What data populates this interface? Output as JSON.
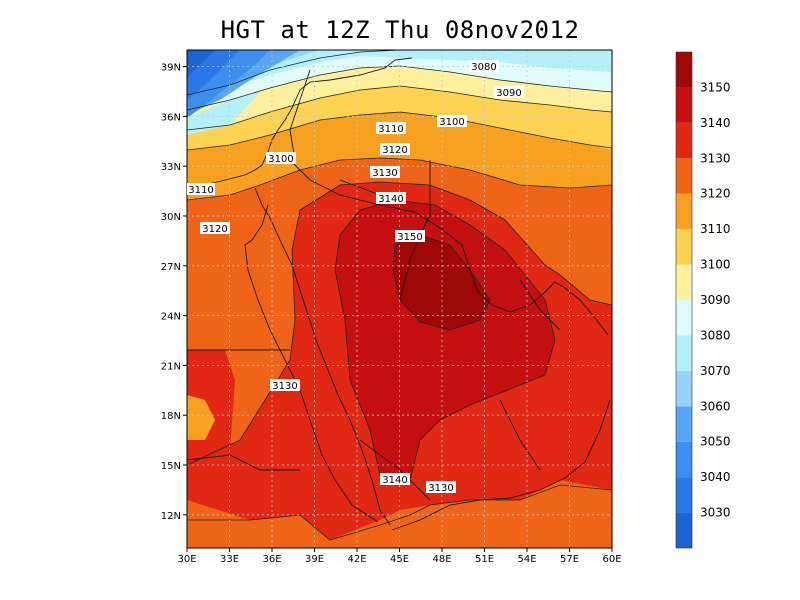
{
  "title": "HGT at 12Z Thu 08nov2012",
  "map": {
    "lon_range": [
      30,
      60
    ],
    "lat_range": [
      10,
      40
    ],
    "x_ticks": [
      "30E",
      "33E",
      "36E",
      "39E",
      "42E",
      "45E",
      "48E",
      "51E",
      "54E",
      "57E",
      "60E"
    ],
    "y_ticks": [
      "12N",
      "15N",
      "18N",
      "21N",
      "24N",
      "27N",
      "30N",
      "33N",
      "36N",
      "39N"
    ],
    "grid": "dotted"
  },
  "contour_labels": [
    "3080",
    "3090",
    "3100",
    "3110",
    "3120",
    "3130",
    "3140",
    "3150",
    "3100",
    "3110",
    "3120",
    "3130",
    "3140",
    "3130"
  ],
  "colorbar": {
    "levels": [
      "3030",
      "3040",
      "3050",
      "3060",
      "3070",
      "3080",
      "3090",
      "3100",
      "3110",
      "3120",
      "3130",
      "3140",
      "3150"
    ],
    "colors": [
      "#1e64d2",
      "#2a78e8",
      "#3c8ff0",
      "#5aa5f5",
      "#96d2fa",
      "#b4f0fa",
      "#e1fafa",
      "#fff0a0",
      "#fcd250",
      "#f8a020",
      "#f06418",
      "#e02814",
      "#c41010",
      "#a00808"
    ]
  },
  "colors": {
    "land_border": "#1a1a1a",
    "contour": "#222222",
    "grid": "#c8c8c8"
  }
}
